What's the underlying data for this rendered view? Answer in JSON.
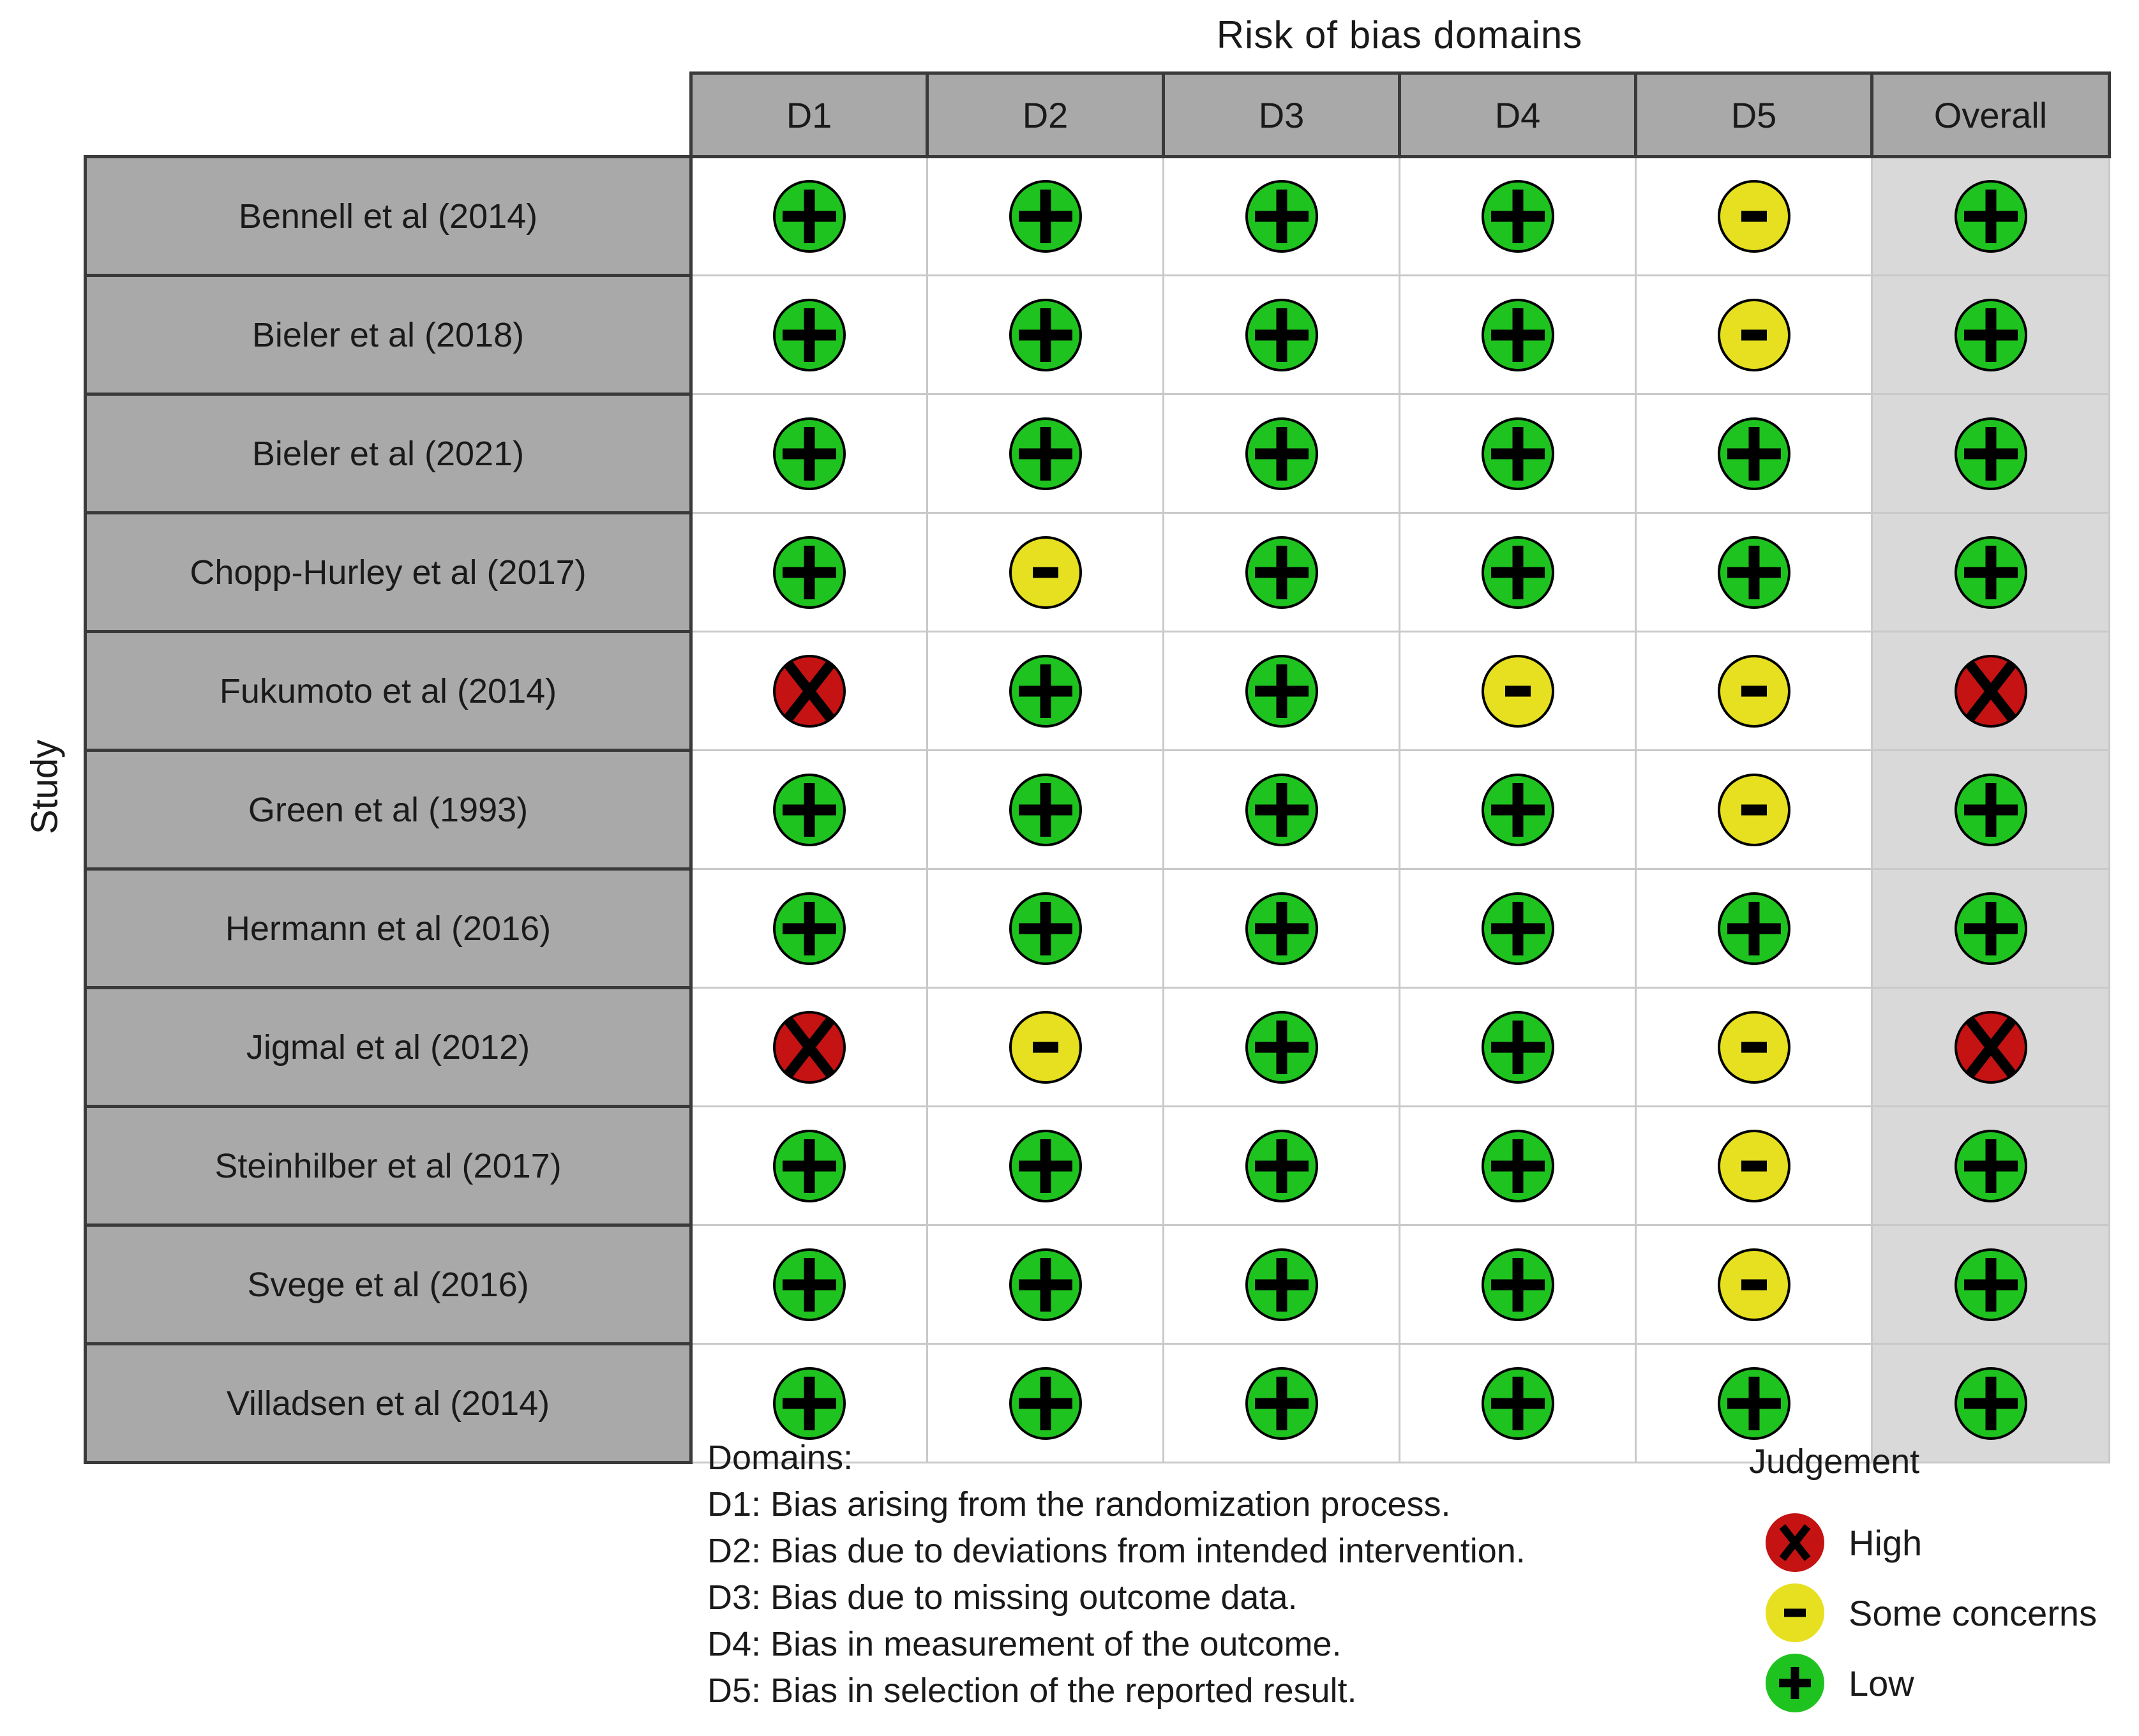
{
  "title": "Risk of bias domains",
  "y_axis_label": "Study",
  "columns": [
    "D1",
    "D2",
    "D3",
    "D4",
    "D5",
    "Overall"
  ],
  "chart_data": {
    "type": "heatmap",
    "title": "Risk of bias domains",
    "xlabel": "Risk of bias domains",
    "ylabel": "Study",
    "x_categories": [
      "D1",
      "D2",
      "D3",
      "D4",
      "D5",
      "Overall"
    ],
    "value_scale": [
      "low",
      "some_concerns",
      "high"
    ],
    "rows": [
      {
        "study": "Bennell et al (2014)",
        "judgments": [
          "low",
          "low",
          "low",
          "low",
          "some_concerns",
          "low"
        ]
      },
      {
        "study": "Bieler et al (2018)",
        "judgments": [
          "low",
          "low",
          "low",
          "low",
          "some_concerns",
          "low"
        ]
      },
      {
        "study": "Bieler et al (2021)",
        "judgments": [
          "low",
          "low",
          "low",
          "low",
          "low",
          "low"
        ]
      },
      {
        "study": "Chopp-Hurley et al (2017)",
        "judgments": [
          "low",
          "some_concerns",
          "low",
          "low",
          "low",
          "low"
        ]
      },
      {
        "study": "Fukumoto et al (2014)",
        "judgments": [
          "high",
          "low",
          "low",
          "some_concerns",
          "some_concerns",
          "high"
        ]
      },
      {
        "study": "Green et al (1993)",
        "judgments": [
          "low",
          "low",
          "low",
          "low",
          "some_concerns",
          "low"
        ]
      },
      {
        "study": "Hermann et al (2016)",
        "judgments": [
          "low",
          "low",
          "low",
          "low",
          "low",
          "low"
        ]
      },
      {
        "study": "Jigmal et al (2012)",
        "judgments": [
          "high",
          "some_concerns",
          "low",
          "low",
          "some_concerns",
          "high"
        ]
      },
      {
        "study": "Steinhilber et al (2017)",
        "judgments": [
          "low",
          "low",
          "low",
          "low",
          "some_concerns",
          "low"
        ]
      },
      {
        "study": "Svege et al (2016)",
        "judgments": [
          "low",
          "low",
          "low",
          "low",
          "some_concerns",
          "low"
        ]
      },
      {
        "study": "Villadsen et al (2014)",
        "judgments": [
          "low",
          "low",
          "low",
          "low",
          "low",
          "low"
        ]
      }
    ],
    "legend_position": "bottom-right",
    "grid": true
  },
  "symbols": {
    "low": "+",
    "some_concerns": "-",
    "high": "X"
  },
  "colors": {
    "low": "#1FC31F",
    "some_concerns": "#E6E020",
    "high": "#C51212",
    "header_bg": "#A9A9A9",
    "overall_bg": "#D9D9D9",
    "grid": "#C9C9C9",
    "cell_border": "#3A3A3A"
  },
  "domains_note": {
    "heading": "Domains:",
    "lines": [
      "D1: Bias arising from the randomization process.",
      "D2: Bias due to deviations from intended intervention.",
      "D3: Bias due to missing outcome data.",
      "D4: Bias in measurement of the outcome.",
      "D5: Bias in selection of the reported result."
    ]
  },
  "judgement_legend": {
    "title": "Judgement",
    "items": [
      {
        "label": "High",
        "level": "high",
        "symbol": "X"
      },
      {
        "label": "Some concerns",
        "level": "some_concerns",
        "symbol": "-"
      },
      {
        "label": "Low",
        "level": "low",
        "symbol": "+"
      }
    ]
  }
}
